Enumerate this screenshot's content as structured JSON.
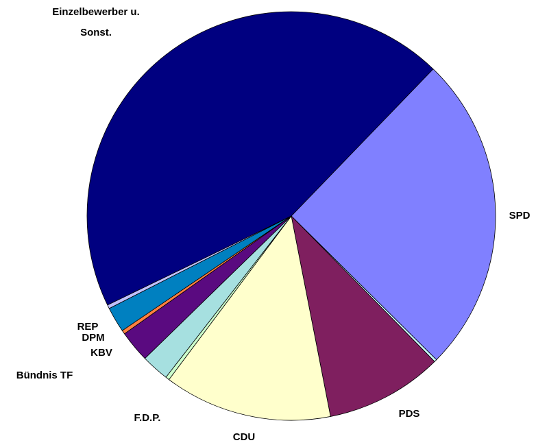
{
  "chart_data": {
    "type": "pie",
    "categories": [
      "SPD",
      null,
      "PDS",
      "CDU",
      "F.D.P.",
      "Bündnis TF",
      "KBV",
      "DPM",
      "REP",
      null,
      "Einzelbewerber u. Sonst."
    ],
    "values": [
      25.2,
      0.2,
      9.3,
      13.3,
      0.3,
      2.2,
      2.5,
      0.3,
      2.0,
      0.3,
      44.4
    ],
    "colors": [
      "#8080ff",
      "#ccffff",
      "#7f1f5f",
      "#ffffcc",
      "#ccffcc",
      "#a6e0e0",
      "#5a0a80",
      "#ff8040",
      "#0080c0",
      "#c0c0ff",
      "#000080"
    ],
    "start_angle": -46
  }
}
